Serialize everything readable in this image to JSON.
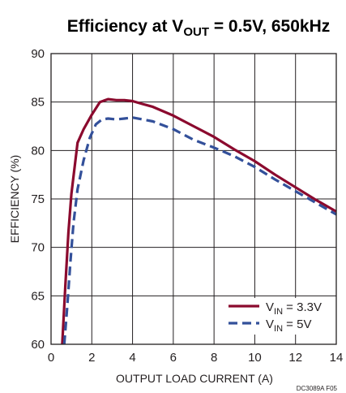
{
  "chart_data": {
    "type": "line",
    "title": {
      "prefix": "Efficiency at V",
      "subscript": "OUT",
      "suffix": " = 0.5V, 650kHz"
    },
    "xlabel": "OUTPUT LOAD CURRENT (A)",
    "ylabel": "EFFICIENCY (%)",
    "xlim": [
      0,
      14
    ],
    "ylim": [
      60,
      90
    ],
    "xticks": [
      0,
      2,
      4,
      6,
      8,
      10,
      12,
      14
    ],
    "yticks": [
      60,
      65,
      70,
      75,
      80,
      85,
      90
    ],
    "grid": true,
    "legend_position": "bottom-right",
    "figure_code": "DC3089A F05",
    "colors": {
      "vin_3v3": "#8b0a2e",
      "vin_5v": "#33509a",
      "grid": "#231f20"
    },
    "series": [
      {
        "name": "V_IN = 3.3V",
        "legend": {
          "prefix": "V",
          "subscript": "IN",
          "suffix": " = 3.3V"
        },
        "style": "solid",
        "x": [
          0.55,
          0.7,
          0.85,
          1.0,
          1.3,
          1.6,
          2.0,
          2.4,
          2.8,
          3.2,
          3.6,
          4.0,
          4.5,
          5.0,
          6.0,
          7.0,
          8.0,
          9.0,
          10.0,
          11.0,
          12.0,
          13.0,
          14.0
        ],
        "values": [
          60.0,
          66.0,
          71.5,
          75.5,
          80.8,
          82.2,
          83.7,
          85.0,
          85.3,
          85.2,
          85.2,
          85.1,
          84.8,
          84.5,
          83.6,
          82.5,
          81.4,
          80.1,
          78.9,
          77.5,
          76.2,
          74.9,
          73.7
        ]
      },
      {
        "name": "V_IN = 5V",
        "legend": {
          "prefix": "V",
          "subscript": "IN",
          "suffix": " = 5V"
        },
        "style": "dashed",
        "x": [
          0.65,
          0.8,
          0.95,
          1.1,
          1.3,
          1.6,
          1.9,
          2.2,
          2.5,
          2.8,
          3.2,
          3.6,
          4.0,
          4.5,
          5.0,
          6.0,
          7.0,
          8.0,
          9.0,
          10.0,
          11.0,
          12.0,
          13.0,
          14.0
        ],
        "values": [
          60.0,
          64.0,
          68.5,
          72.5,
          76.0,
          79.0,
          81.3,
          82.7,
          83.2,
          83.3,
          83.2,
          83.3,
          83.4,
          83.2,
          83.0,
          82.2,
          81.1,
          80.3,
          79.4,
          78.3,
          77.0,
          75.8,
          74.6,
          73.4
        ]
      }
    ]
  }
}
